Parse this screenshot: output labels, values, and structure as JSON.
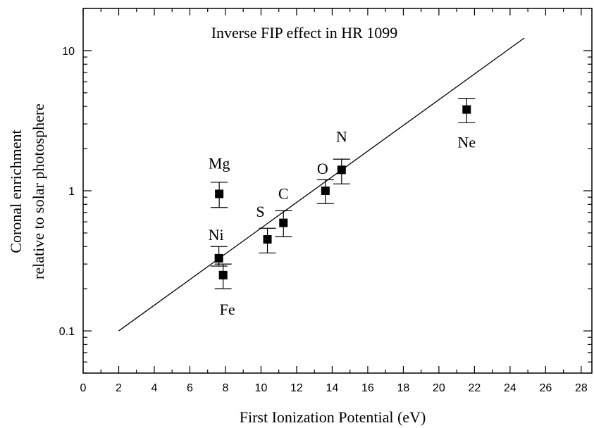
{
  "chart_data": {
    "type": "scatter",
    "title": "Inverse FIP effect in HR 1099",
    "xlabel": "First Ionization Potential (eV)",
    "ylabel": [
      "Coronal enrichment",
      "relative to solar photosphere"
    ],
    "log_y": true,
    "xlim": [
      0,
      28.6
    ],
    "ylim": [
      0.05,
      20
    ],
    "xticks": [
      0,
      2,
      4,
      6,
      8,
      10,
      12,
      14,
      16,
      18,
      20,
      22,
      24,
      26,
      28
    ],
    "yticks": [
      0.1,
      1,
      10
    ],
    "series": [
      {
        "type": "scatter",
        "color": "#000000",
        "labels": [
          "Mg",
          "Ni",
          "Fe",
          "S",
          "C",
          "O",
          "N",
          "Ne"
        ],
        "x": [
          7.65,
          7.63,
          7.87,
          10.36,
          11.26,
          13.62,
          14.53,
          21.56
        ],
        "values": [
          0.95,
          0.33,
          0.25,
          0.45,
          0.59,
          1.0,
          1.41,
          3.8
        ],
        "ylow": [
          0.76,
          0.29,
          0.2,
          0.36,
          0.47,
          0.81,
          1.12,
          3.06
        ],
        "yhigh": [
          1.15,
          0.4,
          0.3,
          0.54,
          0.72,
          1.2,
          1.68,
          4.57
        ]
      },
      {
        "type": "line",
        "color": "#000000",
        "x": [
          2,
          24.8
        ],
        "values": [
          0.1,
          12.3
        ]
      }
    ]
  }
}
